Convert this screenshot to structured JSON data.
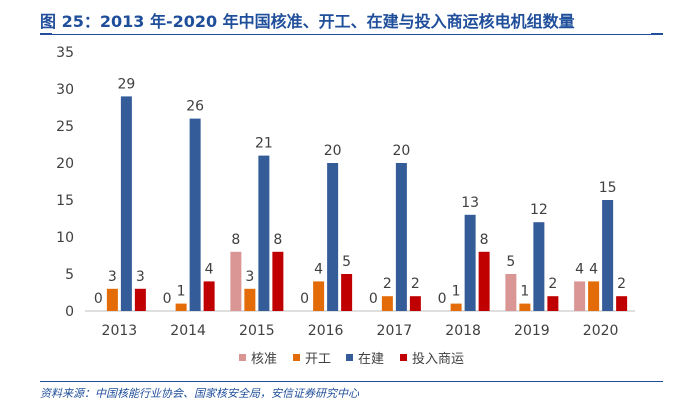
{
  "title": "图 25：2013 年-2020 年中国核准、开工、在建与投入商运核电机组数量",
  "source": "资料来源：中国核能行业协会、国家核安全局，安信证券研究中心",
  "colors": {
    "accent": "#1f4e9a",
    "核准": "#da9694",
    "开工": "#e36c09",
    "在建": "#335c99",
    "投入商运": "#c00000"
  },
  "chart_data": {
    "type": "bar",
    "categories": [
      "2013",
      "2014",
      "2015",
      "2016",
      "2017",
      "2018",
      "2019",
      "2020"
    ],
    "series": [
      {
        "name": "核准",
        "values": [
          0,
          0,
          8,
          0,
          0,
          0,
          5,
          4
        ]
      },
      {
        "name": "开工",
        "values": [
          3,
          1,
          3,
          4,
          2,
          1,
          1,
          4
        ]
      },
      {
        "name": "在建",
        "values": [
          29,
          26,
          21,
          20,
          20,
          13,
          12,
          15
        ]
      },
      {
        "name": "投入商运",
        "values": [
          3,
          4,
          8,
          5,
          2,
          8,
          2,
          2
        ]
      }
    ],
    "ylim": [
      0,
      35
    ],
    "yticks": [
      0,
      5,
      10,
      15,
      20,
      25,
      30,
      35
    ],
    "data_labels": true,
    "grid": false,
    "legend": "bottom"
  }
}
